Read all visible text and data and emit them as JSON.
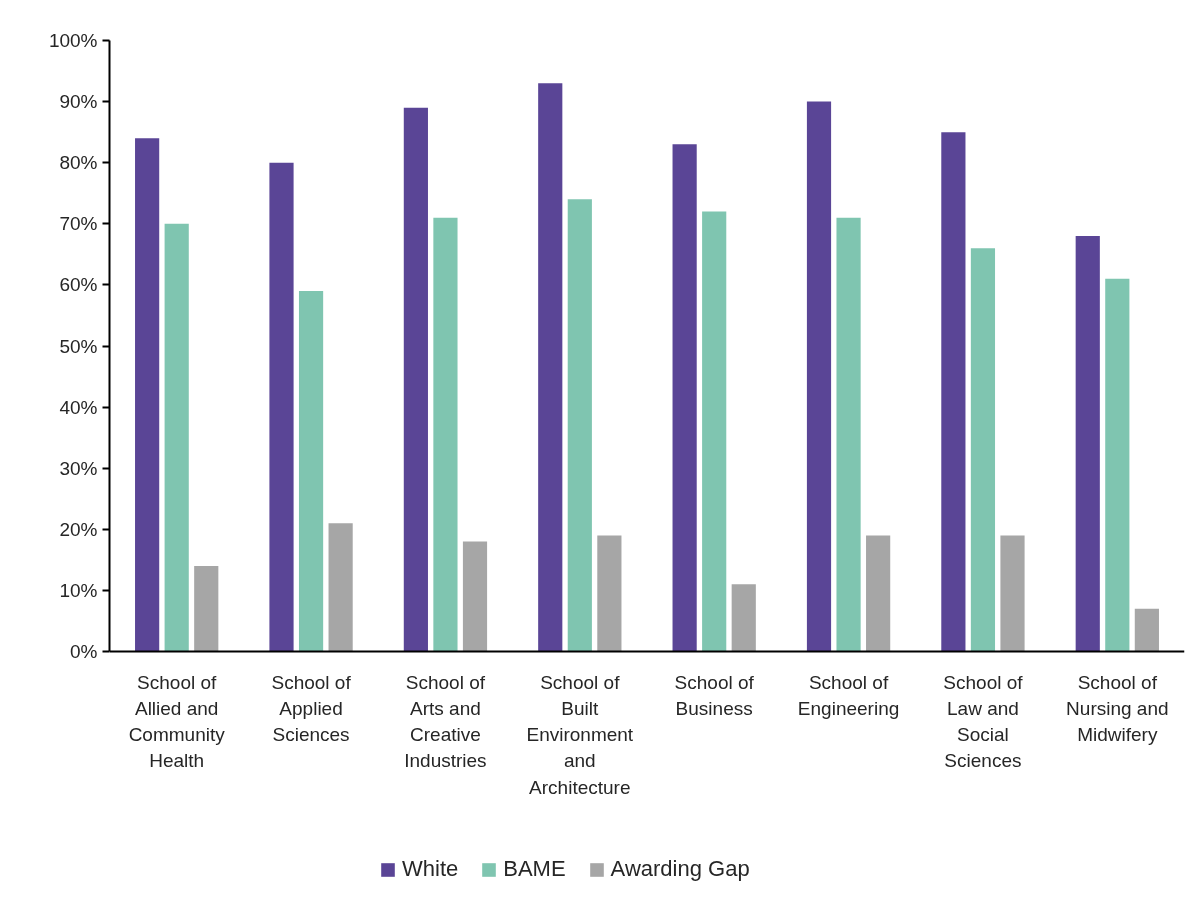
{
  "chart_data": {
    "type": "bar",
    "categories": [
      "School of Allied and Community Health",
      "School of Applied Sciences",
      "School of Arts and Creative Industries",
      "School of Built Environment and Architecture",
      "School of Business",
      "School of Engineering",
      "School of Law and Social Sciences",
      "School of Nursing and Midwifery"
    ],
    "series": [
      {
        "name": "White",
        "color": "#5a4596",
        "values": [
          84,
          80,
          89,
          93,
          83,
          90,
          85,
          68
        ]
      },
      {
        "name": "BAME",
        "color": "#7fc5b0",
        "values": [
          70,
          59,
          71,
          74,
          72,
          71,
          66,
          61
        ]
      },
      {
        "name": "Awarding Gap",
        "color": "#a6a6a6",
        "values": [
          14,
          21,
          18,
          19,
          11,
          19,
          19,
          7
        ]
      }
    ],
    "ylim": [
      0,
      100
    ],
    "yticks": [
      {
        "value": 0,
        "label": "0%"
      },
      {
        "value": 10,
        "label": "10%"
      },
      {
        "value": 20,
        "label": "20%"
      },
      {
        "value": 30,
        "label": "30%"
      },
      {
        "value": 40,
        "label": "40%"
      },
      {
        "value": 50,
        "label": "50%"
      },
      {
        "value": 60,
        "label": "60%"
      },
      {
        "value": 70,
        "label": "70%"
      },
      {
        "value": 80,
        "label": "80%"
      },
      {
        "value": 90,
        "label": "90%"
      },
      {
        "value": 100,
        "label": "100%"
      }
    ],
    "legend": "bottom"
  }
}
